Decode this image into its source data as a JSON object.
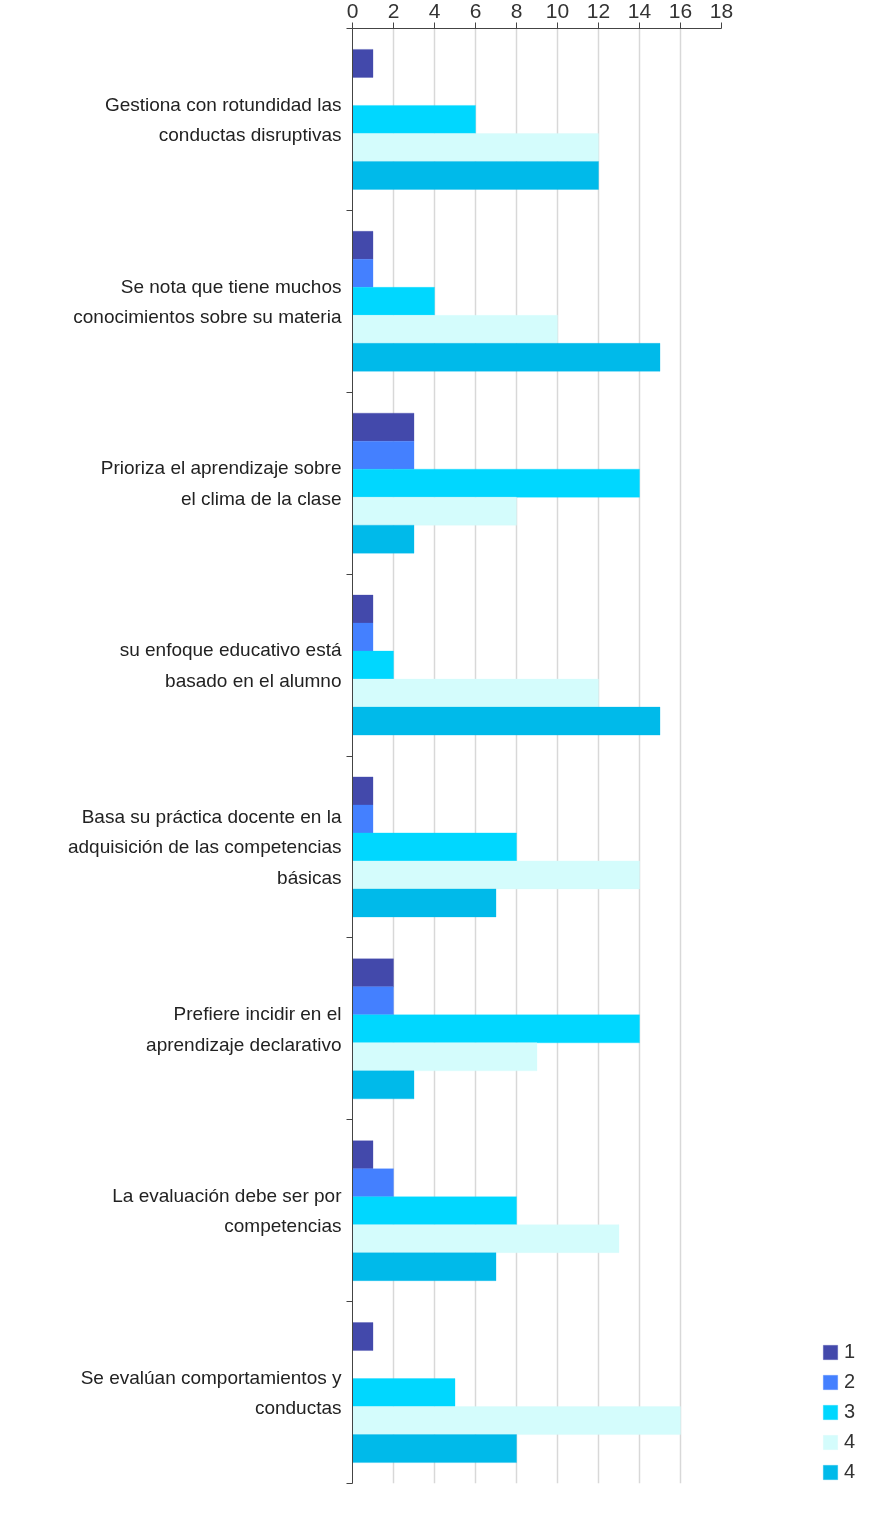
{
  "chart_data": {
    "type": "bar",
    "orientation": "horizontal",
    "categories": [
      "Gestiona con rotundidad las conductas disruptivas",
      "Se nota que tiene muchos conocimientos sobre su materia",
      "Prioriza el aprendizaje sobre el clima de la clase",
      "su enfoque educativo está basado en el alumno",
      "Basa su práctica docente en la adquisición de las competencias básicas",
      "Prefiere incidir en el aprendizaje declarativo",
      "La evaluación debe ser por competencias",
      "Se evalúan comportamientos y conductas"
    ],
    "series": [
      {
        "name": "1",
        "color": "#4349ab",
        "values": [
          1,
          1,
          3,
          1,
          1,
          2,
          1,
          1
        ]
      },
      {
        "name": "2",
        "color": "#4480ff",
        "values": [
          0,
          1,
          3,
          1,
          1,
          2,
          2,
          0
        ]
      },
      {
        "name": "3",
        "color": "#00d7ff",
        "values": [
          6,
          4,
          14,
          2,
          8,
          14,
          8,
          5
        ]
      },
      {
        "name": "4",
        "color": "#d4fcfc",
        "values": [
          12,
          10,
          8,
          12,
          14,
          9,
          13,
          16
        ]
      },
      {
        "name": "4",
        "color": "#00baea",
        "values": [
          12,
          15,
          3,
          15,
          7,
          3,
          7,
          8
        ]
      }
    ],
    "xlim": [
      0,
      18
    ],
    "xticks": [
      0,
      2,
      4,
      6,
      8,
      10,
      12,
      14,
      16,
      18
    ],
    "grid": "x",
    "legend": "bottom right"
  }
}
